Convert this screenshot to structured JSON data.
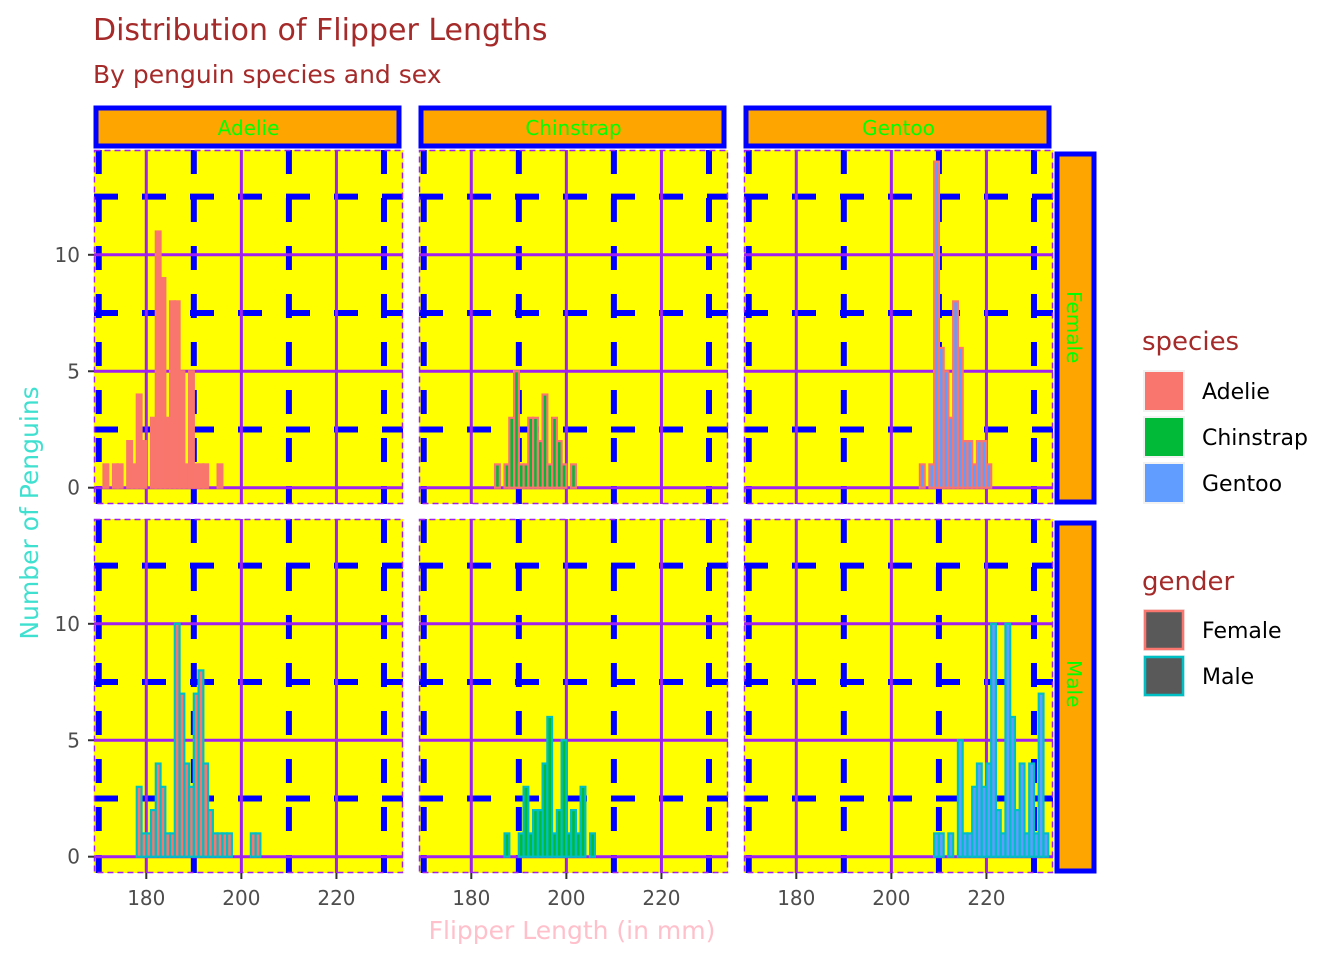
{
  "chart_data": {
    "type": "histogram",
    "title": "Distribution of Flipper Lengths",
    "subtitle": "By penguin species and sex",
    "xlabel": "Flipper Length (in mm)",
    "ylabel": "Number of Penguins",
    "xlim": [
      169,
      234
    ],
    "ylim": [
      -0.7,
      14.5
    ],
    "x_ticks": [
      180,
      200,
      220
    ],
    "y_ticks": [
      0,
      5,
      10
    ],
    "bin_start": 171,
    "bin_width": 1,
    "facet_cols": [
      "Adelie",
      "Chinstrap",
      "Gentoo"
    ],
    "facet_rows": [
      "Female",
      "Male"
    ],
    "legend_species": {
      "title": "species",
      "items": [
        {
          "label": "Adelie",
          "color": "#F8766D"
        },
        {
          "label": "Chinstrap",
          "color": "#00BA38"
        },
        {
          "label": "Gentoo",
          "color": "#619CFF"
        }
      ]
    },
    "legend_gender": {
      "title": "gender",
      "items": [
        {
          "label": "Female",
          "color": "#F8766D"
        },
        {
          "label": "Male",
          "color": "#00BFC4"
        }
      ]
    },
    "colors": {
      "panel_bg": "#FFFF00",
      "major_grid": "#A020F0",
      "minor_grid": "#0000FF",
      "strip_fill": "#FFA500",
      "strip_border": "#0000FF",
      "strip_text": "#00FF00",
      "title": "#A52A2A",
      "ylabel": "#40E0D0",
      "xlabel": "#FFC0CB",
      "tick_text": "#4D4D4D"
    },
    "panels": [
      {
        "species": "Adelie",
        "sex": "Female",
        "fill": "#F8766D",
        "outline": "#F8766D",
        "counts": [
          1,
          0,
          1,
          1,
          0,
          2,
          1,
          4,
          2,
          0,
          3,
          11,
          9,
          3,
          8,
          8,
          5,
          1,
          5,
          1,
          1,
          1,
          0,
          0,
          1,
          0,
          0,
          0,
          0,
          0,
          0,
          0,
          0,
          0,
          0,
          0,
          0,
          0,
          0,
          0,
          0,
          0,
          0,
          0,
          0,
          0,
          0,
          0,
          0,
          0,
          0,
          0,
          0,
          0,
          0,
          0,
          0,
          0,
          0,
          0,
          0,
          0
        ]
      },
      {
        "species": "Chinstrap",
        "sex": "Female",
        "fill": "#00BA38",
        "outline": "#F8766D",
        "counts": [
          0,
          0,
          0,
          0,
          0,
          0,
          0,
          0,
          0,
          0,
          0,
          0,
          0,
          0,
          1,
          0,
          1,
          3,
          5,
          1,
          1,
          3,
          3,
          2,
          4,
          1,
          3,
          2,
          1,
          0,
          1,
          0,
          0,
          0,
          0,
          0,
          0,
          0,
          0,
          0,
          0,
          0,
          0,
          0,
          0,
          0,
          0,
          0,
          0,
          0,
          0,
          0,
          0,
          0,
          0,
          0,
          0,
          0,
          0,
          0,
          0,
          0
        ]
      },
      {
        "species": "Gentoo",
        "sex": "Female",
        "fill": "#619CFF",
        "outline": "#F8766D",
        "counts": [
          0,
          0,
          0,
          0,
          0,
          0,
          0,
          0,
          0,
          0,
          0,
          0,
          0,
          0,
          0,
          0,
          0,
          0,
          0,
          0,
          0,
          0,
          0,
          0,
          0,
          0,
          0,
          0,
          0,
          0,
          0,
          0,
          0,
          0,
          0,
          1,
          0,
          1,
          14,
          6,
          5,
          3,
          8,
          6,
          2,
          2,
          1,
          2,
          2,
          1,
          0,
          0,
          0,
          0,
          0,
          0,
          0,
          0,
          0,
          0,
          0,
          0
        ]
      },
      {
        "species": "Adelie",
        "sex": "Male",
        "fill": "#F8766D",
        "outline": "#00BFC4",
        "counts": [
          0,
          0,
          0,
          0,
          0,
          0,
          0,
          3,
          1,
          1,
          2,
          4,
          3,
          1,
          1,
          10,
          7,
          4,
          3,
          7,
          8,
          4,
          2,
          1,
          1,
          1,
          1,
          0,
          0,
          0,
          0,
          1,
          1,
          0,
          0,
          0,
          0,
          0,
          0,
          0,
          0,
          0,
          0,
          0,
          0,
          0,
          0,
          0,
          0,
          0,
          0,
          0,
          0,
          0,
          0,
          0,
          0,
          0,
          0,
          0,
          0,
          0
        ]
      },
      {
        "species": "Chinstrap",
        "sex": "Male",
        "fill": "#00BA38",
        "outline": "#00BFC4",
        "counts": [
          0,
          0,
          0,
          0,
          0,
          0,
          0,
          0,
          0,
          0,
          0,
          0,
          0,
          0,
          0,
          0,
          1,
          0,
          0,
          1,
          3,
          1,
          2,
          2,
          4,
          6,
          1,
          2,
          5,
          1,
          2,
          1,
          3,
          0,
          1,
          0,
          0,
          0,
          0,
          0,
          0,
          0,
          0,
          0,
          0,
          0,
          0,
          0,
          0,
          0,
          0,
          0,
          0,
          0,
          0,
          0,
          0,
          0,
          0,
          0,
          0,
          0
        ]
      },
      {
        "species": "Gentoo",
        "sex": "Male",
        "fill": "#619CFF",
        "outline": "#00BFC4",
        "counts": [
          0,
          0,
          0,
          0,
          0,
          0,
          0,
          0,
          0,
          0,
          0,
          0,
          0,
          0,
          0,
          0,
          0,
          0,
          0,
          0,
          0,
          0,
          0,
          0,
          0,
          0,
          0,
          0,
          0,
          0,
          0,
          0,
          0,
          0,
          0,
          0,
          0,
          0,
          1,
          1,
          0,
          1,
          0,
          5,
          1,
          1,
          3,
          4,
          3,
          4,
          10,
          2,
          1,
          10,
          6,
          2,
          4,
          1,
          4,
          1,
          7,
          1
        ]
      }
    ]
  }
}
